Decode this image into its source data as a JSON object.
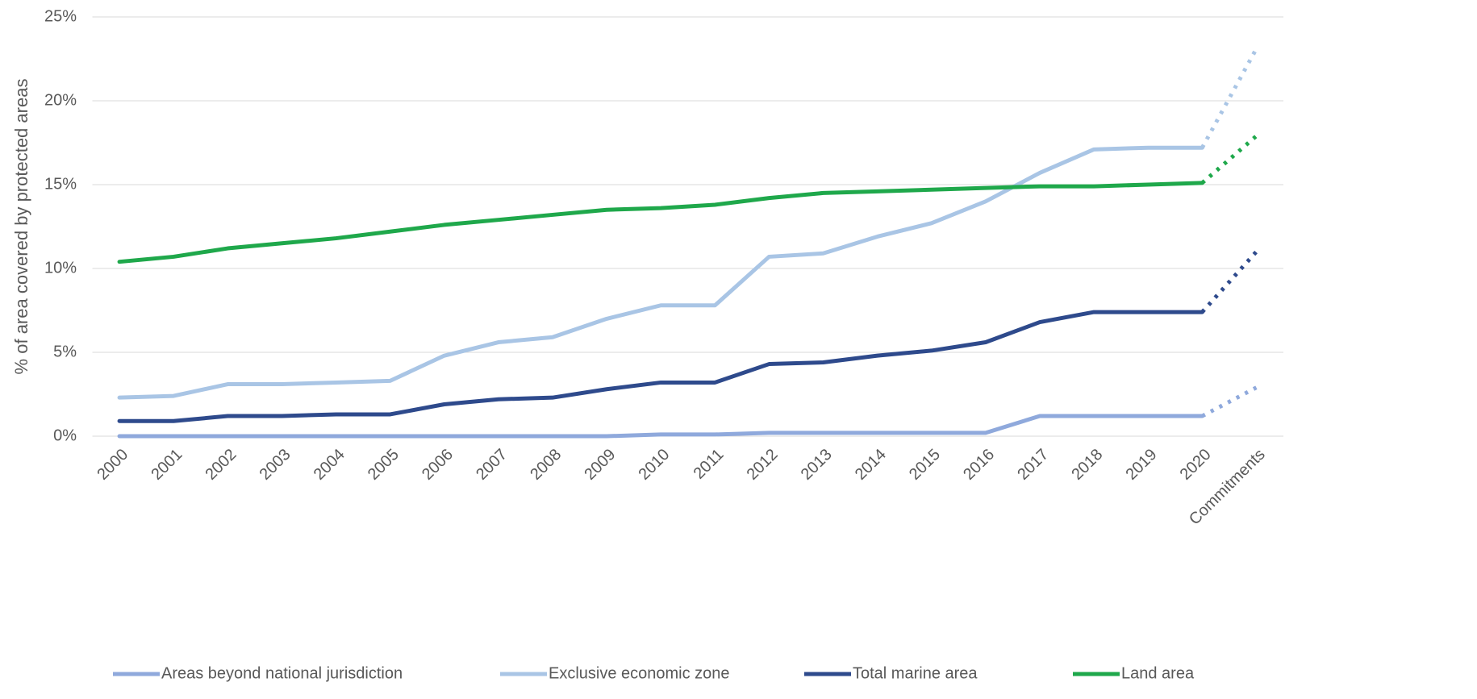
{
  "chart_data": {
    "type": "line",
    "y_label": "% of area covered by protected areas",
    "categories": [
      "2000",
      "2001",
      "2002",
      "2003",
      "2004",
      "2005",
      "2006",
      "2007",
      "2008",
      "2009",
      "2010",
      "2011",
      "2012",
      "2013",
      "2014",
      "2015",
      "2016",
      "2017",
      "2018",
      "2019",
      "2020",
      "Commitments"
    ],
    "series": [
      {
        "name": "Areas beyond national jurisdiction",
        "color": "#8fa9dc",
        "values": [
          0,
          0,
          0,
          0,
          0,
          0,
          0,
          0,
          0,
          0,
          0.1,
          0.1,
          0.2,
          0.2,
          0.2,
          0.2,
          0.2,
          1.2,
          1.2,
          1.2,
          1.2,
          2.9
        ]
      },
      {
        "name": "Exclusive economic zone",
        "color": "#a9c5e5",
        "values": [
          2.3,
          2.4,
          3.1,
          3.1,
          3.2,
          3.3,
          4.8,
          5.6,
          5.9,
          7.0,
          7.8,
          7.8,
          10.7,
          10.9,
          11.9,
          12.7,
          14.0,
          15.7,
          17.1,
          17.2,
          17.2,
          23.1
        ]
      },
      {
        "name": "Total marine area",
        "color": "#2e4a8c",
        "values": [
          0.9,
          0.9,
          1.2,
          1.2,
          1.3,
          1.3,
          1.9,
          2.2,
          2.3,
          2.8,
          3.2,
          3.2,
          4.3,
          4.4,
          4.8,
          5.1,
          5.6,
          6.8,
          7.4,
          7.4,
          7.4,
          11.0
        ]
      },
      {
        "name": "Land area",
        "color": "#1fa84b",
        "values": [
          10.4,
          10.7,
          11.2,
          11.5,
          11.8,
          12.2,
          12.6,
          12.9,
          13.2,
          13.5,
          13.6,
          13.8,
          14.2,
          14.5,
          14.6,
          14.7,
          14.8,
          14.9,
          14.9,
          15.0,
          15.1,
          17.9
        ]
      }
    ],
    "ylim": [
      0,
      25
    ],
    "yticks": [
      {
        "value": 0,
        "label": "0%"
      },
      {
        "value": 5,
        "label": "5%"
      },
      {
        "value": 10,
        "label": "10%"
      },
      {
        "value": 15,
        "label": "15%"
      },
      {
        "value": 20,
        "label": "20%"
      },
      {
        "value": 25,
        "label": "25%"
      }
    ],
    "grid": true,
    "legend": "bottom"
  }
}
